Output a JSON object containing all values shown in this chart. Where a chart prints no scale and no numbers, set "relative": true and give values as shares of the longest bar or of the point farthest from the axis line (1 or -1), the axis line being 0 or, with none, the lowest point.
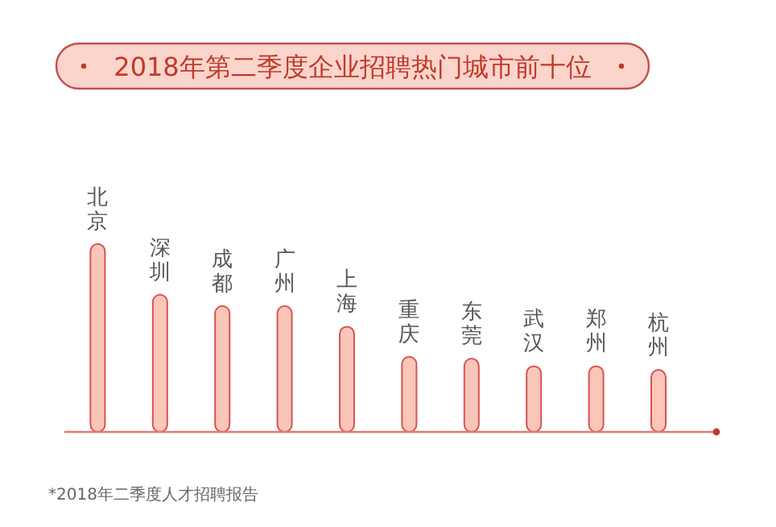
{
  "chart_data": {
    "type": "bar",
    "title": "2018年第二季度企业招聘热门城市前十位",
    "categories": [
      "北京",
      "深圳",
      "成都",
      "广州",
      "上海",
      "重庆",
      "东莞",
      "武汉",
      "郑州",
      "杭州"
    ],
    "values": [
      1,
      0.73,
      0.67,
      0.67,
      0.56,
      0.4,
      0.39,
      0.35,
      0.35,
      0.33
    ],
    "relative": true,
    "color": "#f9c6b9",
    "annotations": [
      "*2018年二季度人才招聘报告"
    ]
  }
}
